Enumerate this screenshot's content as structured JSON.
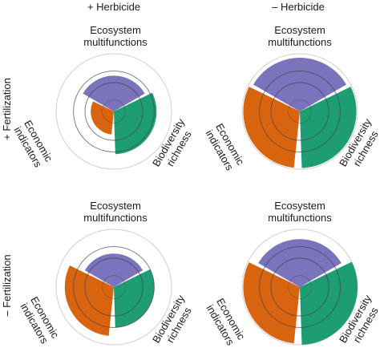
{
  "columns": [
    "+ Herbicide",
    "– Herbicide"
  ],
  "rows": [
    "+ Fertilization",
    "– Fertilization"
  ],
  "axes": {
    "top": [
      "Ecosystem",
      "multifunctions"
    ],
    "left": [
      "Economic",
      "indicators"
    ],
    "right": [
      "Biodiversity",
      "richness"
    ]
  },
  "colors": {
    "ecosystem": "#7b73bb",
    "economic": "#d9640f",
    "biodiversity": "#1e9c74",
    "outline": "#444444",
    "guide_ring": "#cfcfcf"
  },
  "panels": [
    {
      "column": 0,
      "row": 0,
      "levels": {
        "ecosystem": 0.62,
        "economic": 0.4,
        "biodiversity": 0.74
      }
    },
    {
      "column": 1,
      "row": 0,
      "levels": {
        "ecosystem": 0.93,
        "economic": 0.98,
        "biodiversity": 0.98
      }
    },
    {
      "column": 0,
      "row": 1,
      "levels": {
        "ecosystem": 0.58,
        "economic": 0.85,
        "biodiversity": 0.7
      }
    },
    {
      "column": 1,
      "row": 1,
      "levels": {
        "ecosystem": 0.83,
        "economic": 0.98,
        "biodiversity": 1.0
      }
    }
  ]
}
